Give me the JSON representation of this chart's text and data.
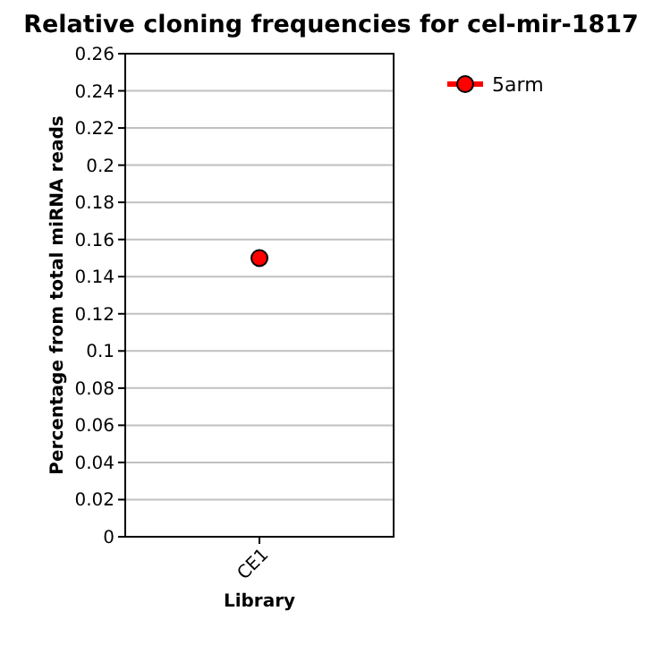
{
  "chart_data": {
    "type": "line",
    "title": "Relative cloning frequencies for cel-mir-1817",
    "xlabel": "Library",
    "ylabel": "Percentage from total miRNA reads",
    "categories": [
      "CE1"
    ],
    "series": [
      {
        "name": "5arm",
        "color": "#ff0000",
        "values": [
          0.15
        ]
      }
    ],
    "ylim": [
      0,
      0.26
    ],
    "yticks": [
      0,
      0.02,
      0.04,
      0.06,
      0.08,
      0.1,
      0.12,
      0.14,
      0.16,
      0.18,
      0.2,
      0.22,
      0.24,
      0.26
    ],
    "grid": "y",
    "legend": "top right",
    "marker": "circle"
  }
}
